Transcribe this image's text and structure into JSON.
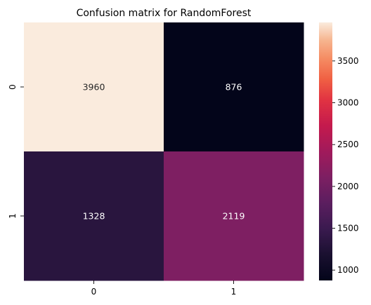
{
  "chart_data": {
    "type": "heatmap",
    "title": "Confusion matrix for RandomForest",
    "xlabel": "",
    "ylabel": "",
    "x_categories": [
      "0",
      "1"
    ],
    "y_categories": [
      "0",
      "1"
    ],
    "values": [
      [
        3960,
        876
      ],
      [
        1328,
        2119
      ]
    ],
    "annotations": [
      [
        "3960",
        "876"
      ],
      [
        "1328",
        "2119"
      ]
    ],
    "colormap": "rocket",
    "colorbar": {
      "range": [
        876,
        3960
      ],
      "ticks": [
        1000,
        1500,
        2000,
        2500,
        3000,
        3500
      ],
      "tick_labels": [
        "1000",
        "1500",
        "2000",
        "2500",
        "3000",
        "3500"
      ]
    }
  }
}
